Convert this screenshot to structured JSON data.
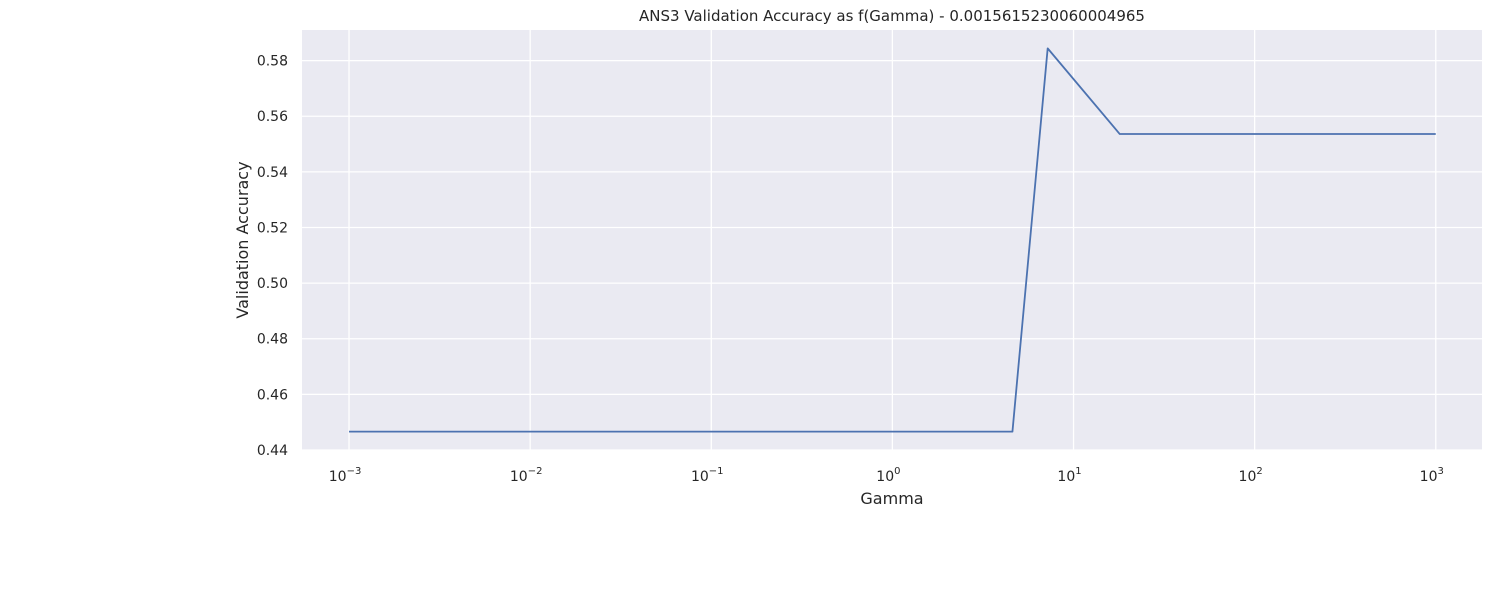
{
  "chart_data": {
    "type": "line",
    "title": "ANS3 Validation Accuracy as f(Gamma) - 0.0015615230060004965",
    "xlabel": "Gamma",
    "ylabel": "Validation Accuracy",
    "xscale": "log",
    "xlim": [
      0.00055,
      1800
    ],
    "ylim": [
      0.44,
      0.591
    ],
    "grid": true,
    "colors": {
      "background": "#eaeaf2",
      "grid": "#ffffff",
      "line": "#4c72b0"
    },
    "x_ticks": [
      {
        "base": "10",
        "exp": "−3",
        "value": 0.001
      },
      {
        "base": "10",
        "exp": "−2",
        "value": 0.01
      },
      {
        "base": "10",
        "exp": "−1",
        "value": 0.1
      },
      {
        "base": "10",
        "exp": "0",
        "value": 1
      },
      {
        "base": "10",
        "exp": "1",
        "value": 10
      },
      {
        "base": "10",
        "exp": "2",
        "value": 100
      },
      {
        "base": "10",
        "exp": "3",
        "value": 1000
      }
    ],
    "y_ticks": [
      "0.44",
      "0.46",
      "0.48",
      "0.50",
      "0.52",
      "0.54",
      "0.56",
      "0.58"
    ],
    "series": [
      {
        "x": [
          0.001,
          0.002,
          0.005,
          0.01,
          0.02,
          0.05,
          0.1,
          0.2,
          0.5,
          1,
          2,
          4.6,
          7.2,
          18,
          50,
          100,
          200,
          500,
          1000
        ],
        "y": [
          0.4466,
          0.4466,
          0.4466,
          0.4466,
          0.4466,
          0.4466,
          0.4466,
          0.4466,
          0.4466,
          0.4466,
          0.4466,
          0.4466,
          0.5844,
          0.5536,
          0.5536,
          0.5536,
          0.5536,
          0.5536,
          0.5536
        ]
      }
    ]
  }
}
